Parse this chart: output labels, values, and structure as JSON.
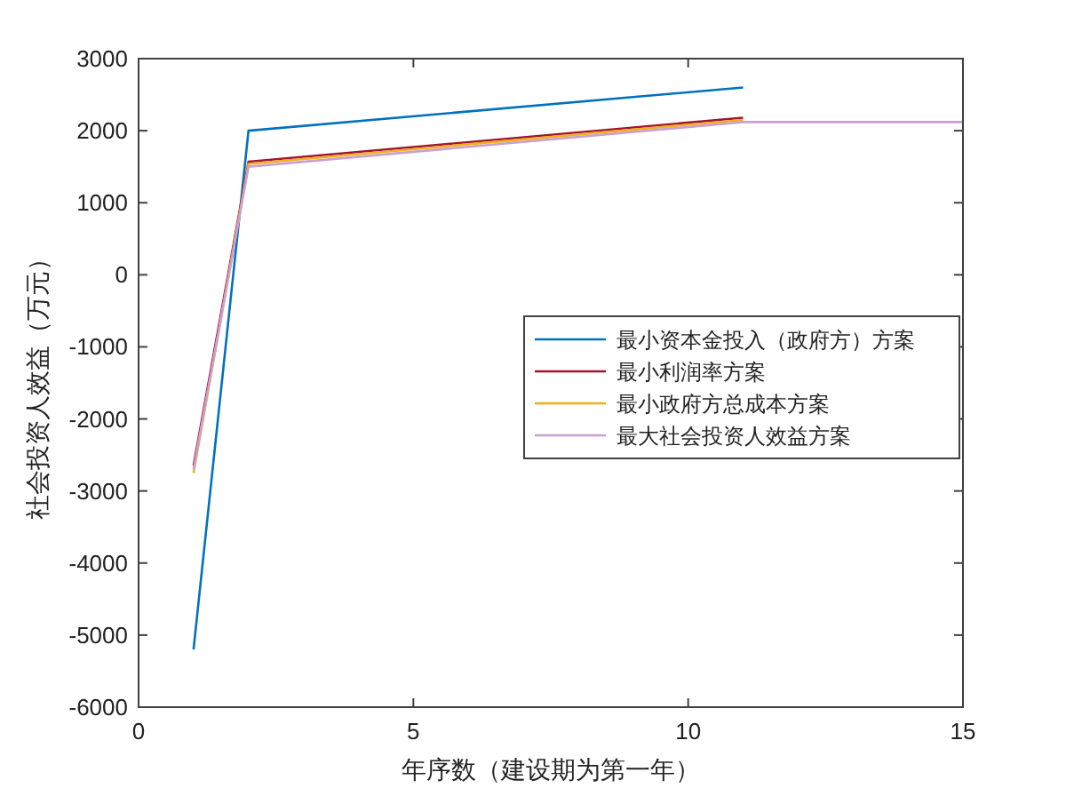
{
  "chart_data": {
    "type": "line",
    "xlabel": "年序数（建设期为第一年）",
    "ylabel": "社会投资人效益（万元）",
    "xlim": [
      0,
      15
    ],
    "xticks": [
      0,
      5,
      10,
      15
    ],
    "ylim": [
      -6000,
      3000
    ],
    "yticks": [
      -6000,
      -5000,
      -4000,
      -3000,
      -2000,
      -1000,
      0,
      1000,
      2000,
      3000
    ],
    "grid": false,
    "legend": "right",
    "series": [
      {
        "name": "最小资本金投入（政府方）方案",
        "color": "#0072bd",
        "x": [
          1,
          2,
          11
        ],
        "values": [
          -5200,
          2000,
          2600
        ]
      },
      {
        "name": "最小利润率方案",
        "color": "#a2142f",
        "x": [
          1,
          2,
          11
        ],
        "values": [
          -2650,
          1570,
          2180
        ]
      },
      {
        "name": "最小政府方总成本方案",
        "color": "#edb120",
        "x": [
          1,
          2,
          11
        ],
        "values": [
          -2750,
          1540,
          2150
        ]
      },
      {
        "name": "最大社会投资人效益方案",
        "color": "#c9a0d0",
        "x": [
          1,
          2,
          11,
          15
        ],
        "values": [
          -2700,
          1500,
          2120,
          2120
        ]
      }
    ]
  }
}
